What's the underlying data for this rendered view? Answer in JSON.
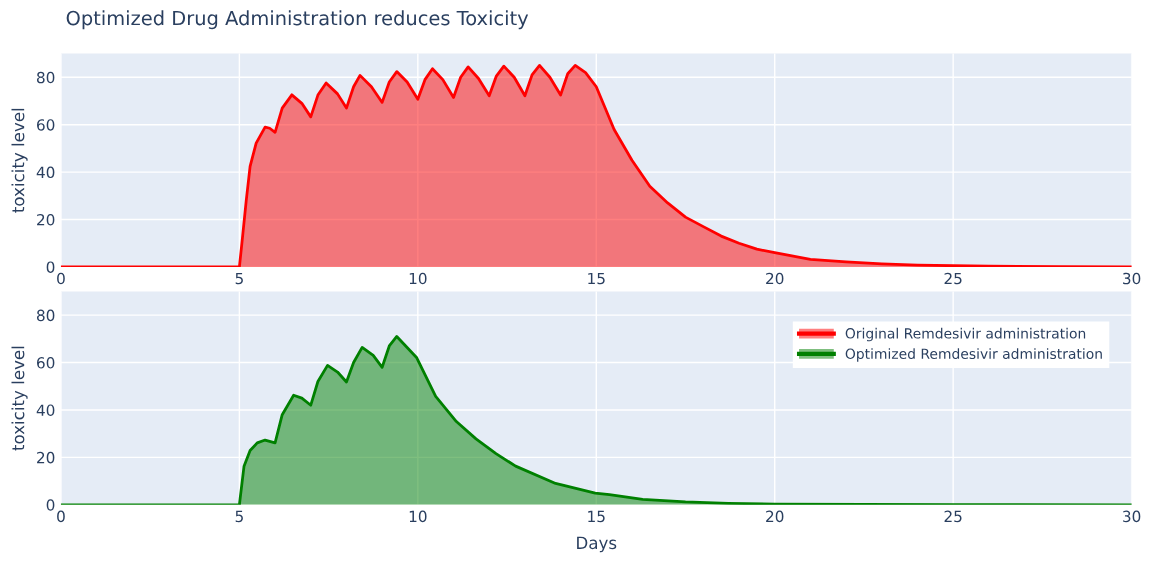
{
  "chart_data": [
    {
      "type": "area",
      "title": "Optimized Drug Administration reduces Toxicity",
      "ylabel": "toxicity level",
      "xlim": [
        0,
        30
      ],
      "xticks": [
        0,
        5,
        10,
        15,
        20,
        25,
        30
      ],
      "ylim": [
        0,
        90
      ],
      "yticks": [
        0,
        20,
        40,
        60,
        80
      ],
      "grid": true,
      "legend": "right",
      "series": [
        {
          "name": "Original Remdesivir administration",
          "color": "#ff0000",
          "x": [
            0,
            5,
            5.08,
            5.19,
            5.3,
            5.47,
            5.72,
            5.85,
            6.0,
            6.2,
            6.47,
            6.75,
            7.0,
            7.2,
            7.43,
            7.75,
            8.0,
            8.2,
            8.38,
            8.7,
            9.0,
            9.2,
            9.41,
            9.7,
            10.0,
            10.2,
            10.41,
            10.7,
            11.0,
            11.2,
            11.41,
            11.7,
            12.0,
            12.2,
            12.41,
            12.7,
            13.0,
            13.2,
            13.41,
            13.7,
            14.0,
            14.2,
            14.41,
            14.7,
            15.0,
            15.5,
            16.0,
            16.5,
            17.0,
            17.5,
            18.0,
            18.5,
            19.0,
            19.5,
            20.0,
            21.0,
            22.0,
            23.0,
            24.0,
            25.0,
            26.0,
            28.0,
            30.0
          ],
          "values": [
            0,
            0,
            11.4,
            27.8,
            42.4,
            52.2,
            59,
            58.5,
            56.8,
            67,
            72.6,
            69,
            63.3,
            72.5,
            77.6,
            73,
            67,
            76,
            80.8,
            76,
            69.4,
            78,
            82.4,
            78,
            70.7,
            79,
            83.6,
            79,
            71.5,
            80,
            84.4,
            79.5,
            72.2,
            80.5,
            84.7,
            80,
            72.2,
            81,
            85,
            80,
            72.5,
            81.5,
            85,
            82,
            76,
            58,
            45,
            34,
            27,
            21,
            17,
            13,
            10,
            7.5,
            6,
            3.2,
            2.1,
            1.3,
            0.8,
            0.5,
            0.3,
            0.1,
            0
          ]
        }
      ]
    },
    {
      "type": "area",
      "xlabel": "Days",
      "ylabel": "toxicity level",
      "xlim": [
        0,
        30
      ],
      "xticks": [
        0,
        5,
        10,
        15,
        20,
        25,
        30
      ],
      "ylim": [
        0,
        90
      ],
      "yticks": [
        0,
        20,
        40,
        60,
        80
      ],
      "grid": true,
      "legend": "right",
      "series": [
        {
          "name": "Optimized Remdesivir administration",
          "color": "#008000",
          "x": [
            0,
            5,
            5.13,
            5.3,
            5.5,
            5.72,
            6.0,
            6.2,
            6.52,
            6.75,
            7.0,
            7.2,
            7.47,
            7.75,
            8.0,
            8.2,
            8.44,
            8.75,
            9.0,
            9.2,
            9.41,
            9.97,
            10.5,
            11.08,
            11.63,
            12.19,
            12.74,
            13.86,
            14.97,
            15.37,
            16.3,
            17.5,
            18.7,
            20.0,
            25.0,
            30.0
          ],
          "values": [
            0,
            0,
            16.3,
            22.9,
            26.1,
            27.3,
            26.1,
            38,
            46.2,
            45,
            42,
            52,
            58.8,
            56,
            51.8,
            60,
            66.4,
            63,
            58,
            67,
            71,
            62,
            45.7,
            35.1,
            27.8,
            21.6,
            16.3,
            9,
            4.9,
            4.3,
            2.3,
            1.2,
            0.6,
            0.3,
            0.1,
            0
          ]
        }
      ]
    }
  ]
}
